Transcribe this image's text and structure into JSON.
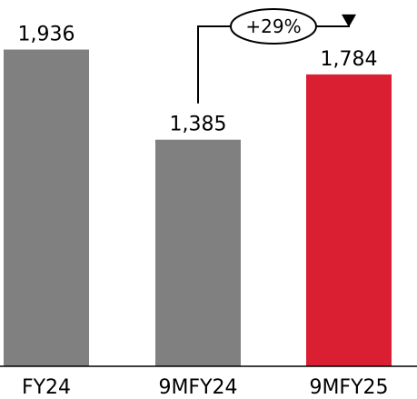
{
  "chart_data": {
    "type": "bar",
    "categories": [
      "FY24",
      "9MFY24",
      "9MFY25"
    ],
    "values": [
      1936,
      1385,
      1784
    ],
    "value_labels": [
      "1,936",
      "1,385",
      "1,784"
    ],
    "colors": [
      "#808080",
      "#808080",
      "#db1f33"
    ],
    "ylim": [
      0,
      2500
    ],
    "grid": false,
    "legend": "none",
    "annotation": {
      "text": "+29%",
      "from_category": "9MFY24",
      "to_category": "9MFY25"
    }
  }
}
